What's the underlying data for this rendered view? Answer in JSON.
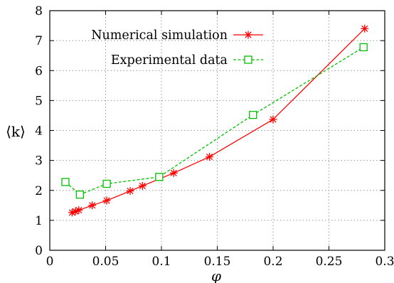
{
  "chart_data": {
    "type": "line",
    "title": "",
    "xlabel": "φ",
    "ylabel": "⟨k⟩",
    "xlim": [
      0,
      0.3
    ],
    "ylim": [
      0,
      8
    ],
    "x_ticks": [
      "0",
      "0.05",
      "0.1",
      "0.15",
      "0.2",
      "0.25",
      "0.3"
    ],
    "y_ticks": [
      "0",
      "1",
      "2",
      "3",
      "4",
      "5",
      "6",
      "7",
      "8"
    ],
    "grid": true,
    "legend_position": "top-left",
    "series": [
      {
        "name": "Numerical simulation",
        "color": "#ff0000",
        "marker": "star",
        "line_style": "solid",
        "x": [
          0.02,
          0.023,
          0.026,
          0.038,
          0.051,
          0.072,
          0.083,
          0.111,
          0.143,
          0.2,
          0.282
        ],
        "y": [
          1.26,
          1.3,
          1.34,
          1.5,
          1.66,
          1.98,
          2.15,
          2.58,
          3.12,
          4.37,
          7.4
        ]
      },
      {
        "name": "Experimental data",
        "color": "#00c000",
        "marker": "open-square",
        "line_style": "dashed",
        "x": [
          0.014,
          0.027,
          0.051,
          0.098,
          0.182,
          0.281
        ],
        "y": [
          2.28,
          1.86,
          2.22,
          2.45,
          4.52,
          6.78
        ]
      }
    ]
  }
}
